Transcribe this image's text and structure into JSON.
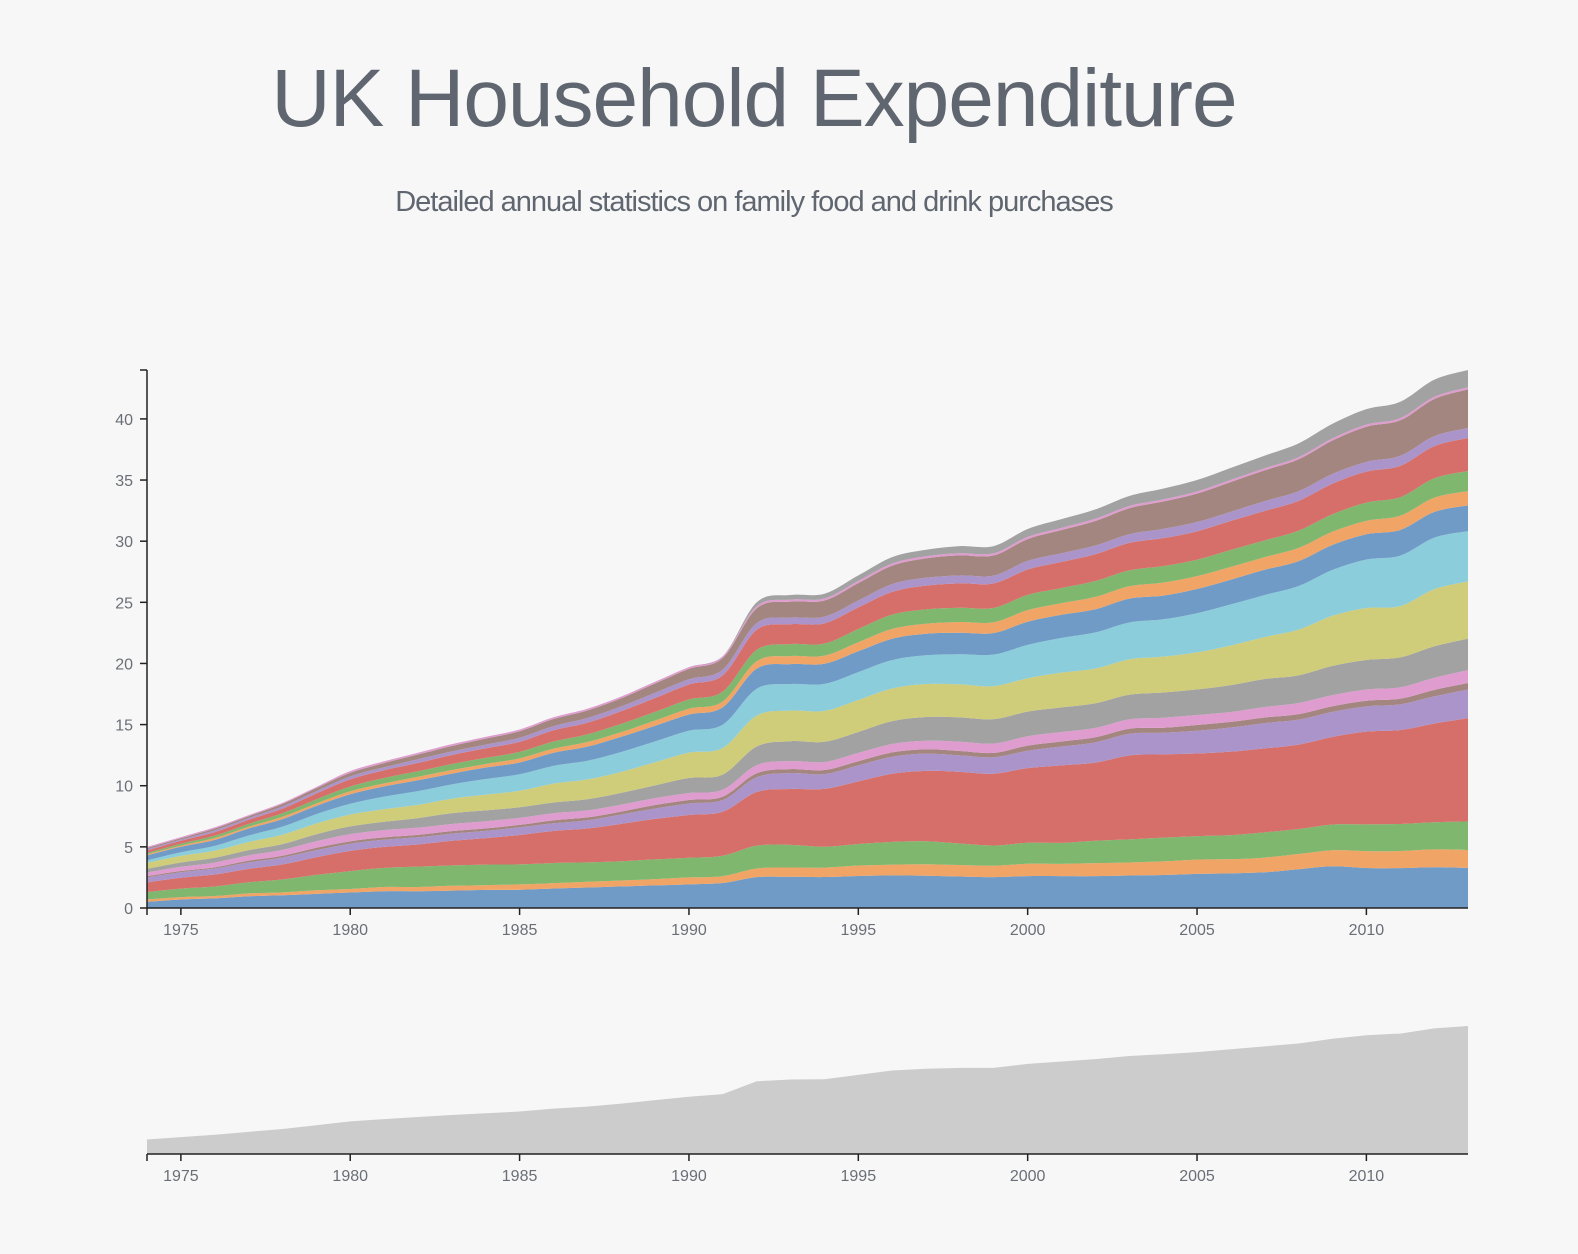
{
  "header": {
    "title": "UK Household Expenditure",
    "subtitle": "Detailed annual statistics on family food and drink purchases"
  },
  "colors": {
    "background": "#f7f7f7",
    "axis": "#222222",
    "tick_text": "#6a6f77",
    "context_area": "#cccccc",
    "palette": [
      "#6f9bc6",
      "#f0a466",
      "#7fb76e",
      "#d66f6a",
      "#ab94c9",
      "#a3867f",
      "#df9ccf",
      "#a2a2a2",
      "#cfcc7a",
      "#8ccddb"
    ]
  },
  "chart_data": {
    "type": "area",
    "stacked": true,
    "smooth": true,
    "title": "UK Household Expenditure",
    "subtitle": "Detailed annual statistics on family food and drink purchases",
    "xlabel": "",
    "ylabel": "",
    "xlim": [
      1974,
      2013
    ],
    "ylim": [
      0,
      44
    ],
    "x_ticks": [
      1975,
      1980,
      1985,
      1990,
      1995,
      2000,
      2005,
      2010
    ],
    "y_ticks": [
      0,
      5,
      10,
      15,
      20,
      25,
      30,
      35,
      40
    ],
    "grid": false,
    "legend": "none",
    "x": [
      1974,
      1975,
      1976,
      1977,
      1978,
      1979,
      1980,
      1981,
      1982,
      1983,
      1984,
      1985,
      1986,
      1987,
      1988,
      1989,
      1990,
      1991,
      1992,
      1993,
      1994,
      1995,
      1996,
      1997,
      1998,
      1999,
      2000,
      2001,
      2002,
      2003,
      2004,
      2005,
      2006,
      2007,
      2008,
      2009,
      2010,
      2011,
      2012,
      2013
    ],
    "total": [
      5.0,
      5.8,
      6.6,
      7.6,
      8.6,
      9.9,
      11.2,
      12.0,
      12.7,
      13.4,
      14.0,
      14.6,
      15.6,
      16.3,
      17.3,
      18.5,
      19.7,
      20.6,
      25.0,
      25.6,
      25.7,
      27.2,
      28.7,
      29.3,
      29.6,
      29.6,
      31.0,
      31.8,
      32.6,
      33.7,
      34.3,
      35.0,
      36.0,
      37.0,
      38.0,
      39.6,
      40.8,
      41.4,
      43.2,
      44.0
    ],
    "series": [
      {
        "values": [
          0.5,
          0.7,
          0.8,
          1.0,
          1.1,
          1.2,
          1.3,
          1.4,
          1.4,
          1.45,
          1.5,
          1.55,
          1.65,
          1.75,
          1.85,
          1.95,
          2.05,
          2.15,
          2.3,
          2.35,
          2.3,
          2.3,
          2.3,
          2.25,
          2.2,
          2.15,
          2.2,
          2.2,
          2.2,
          2.25,
          2.3,
          2.4,
          2.45,
          2.55,
          2.8,
          3.0,
          2.85,
          2.8,
          2.85,
          2.8
        ]
      },
      {
        "values": [
          0.2,
          0.2,
          0.2,
          0.25,
          0.25,
          0.3,
          0.3,
          0.35,
          0.35,
          0.4,
          0.4,
          0.45,
          0.45,
          0.5,
          0.5,
          0.55,
          0.6,
          0.6,
          0.65,
          0.7,
          0.7,
          0.75,
          0.75,
          0.8,
          0.8,
          0.8,
          0.85,
          0.85,
          0.9,
          0.9,
          0.95,
          1.0,
          1.0,
          1.05,
          1.1,
          1.15,
          1.2,
          1.2,
          1.25,
          1.25
        ]
      },
      {
        "values": [
          0.6,
          0.7,
          0.8,
          0.95,
          1.1,
          1.3,
          1.5,
          1.6,
          1.7,
          1.7,
          1.7,
          1.7,
          1.7,
          1.65,
          1.65,
          1.7,
          1.7,
          1.75,
          1.7,
          1.7,
          1.55,
          1.55,
          1.6,
          1.6,
          1.5,
          1.4,
          1.45,
          1.45,
          1.55,
          1.6,
          1.65,
          1.65,
          1.7,
          1.8,
          1.8,
          1.85,
          1.9,
          1.9,
          1.9,
          2.0
        ]
      },
      {
        "values": [
          0.8,
          0.9,
          1.0,
          1.15,
          1.3,
          1.5,
          1.7,
          1.75,
          1.85,
          2.05,
          2.2,
          2.5,
          2.7,
          2.9,
          3.2,
          3.5,
          3.7,
          3.8,
          4.0,
          4.2,
          4.3,
          4.5,
          4.8,
          4.9,
          5.0,
          5.0,
          5.15,
          5.35,
          5.4,
          5.8,
          5.8,
          5.8,
          5.9,
          6.0,
          6.1,
          6.3,
          6.6,
          6.6,
          6.9,
          7.2
        ]
      },
      {
        "values": [
          0.4,
          0.45,
          0.5,
          0.55,
          0.6,
          0.6,
          0.6,
          0.6,
          0.6,
          0.6,
          0.6,
          0.65,
          0.65,
          0.7,
          0.8,
          0.9,
          1.0,
          1.0,
          1.1,
          1.2,
          1.1,
          1.15,
          1.2,
          1.2,
          1.15,
          1.15,
          1.2,
          1.3,
          1.4,
          1.5,
          1.5,
          1.6,
          1.7,
          1.8,
          1.8,
          1.8,
          1.8,
          1.8,
          1.9,
          2.0
        ]
      },
      {
        "values": [
          0.1,
          0.1,
          0.1,
          0.15,
          0.15,
          0.2,
          0.2,
          0.2,
          0.2,
          0.2,
          0.2,
          0.2,
          0.25,
          0.25,
          0.25,
          0.3,
          0.3,
          0.3,
          0.3,
          0.3,
          0.3,
          0.3,
          0.3,
          0.3,
          0.3,
          0.3,
          0.35,
          0.35,
          0.35,
          0.35,
          0.35,
          0.4,
          0.4,
          0.4,
          0.4,
          0.4,
          0.4,
          0.4,
          0.45,
          0.45
        ]
      },
      {
        "values": [
          0.3,
          0.35,
          0.4,
          0.45,
          0.5,
          0.55,
          0.6,
          0.6,
          0.6,
          0.6,
          0.6,
          0.6,
          0.6,
          0.6,
          0.6,
          0.6,
          0.6,
          0.6,
          0.6,
          0.6,
          0.6,
          0.6,
          0.6,
          0.6,
          0.65,
          0.65,
          0.65,
          0.65,
          0.65,
          0.65,
          0.7,
          0.7,
          0.7,
          0.75,
          0.8,
          0.8,
          0.8,
          0.8,
          0.85,
          0.9
        ]
      },
      {
        "values": [
          0.3,
          0.35,
          0.4,
          0.45,
          0.5,
          0.6,
          0.65,
          0.7,
          0.8,
          0.9,
          0.9,
          0.9,
          0.9,
          0.95,
          1.0,
          1.1,
          1.3,
          1.3,
          1.4,
          1.5,
          1.5,
          1.5,
          1.6,
          1.65,
          1.7,
          1.7,
          1.7,
          1.7,
          1.7,
          1.7,
          1.75,
          1.8,
          1.9,
          2.0,
          2.0,
          2.1,
          2.1,
          2.1,
          2.2,
          2.2
        ]
      },
      {
        "values": [
          0.5,
          0.55,
          0.6,
          0.7,
          0.8,
          0.9,
          1.0,
          1.05,
          1.1,
          1.2,
          1.3,
          1.4,
          1.6,
          1.7,
          1.8,
          2.0,
          2.2,
          2.3,
          2.3,
          2.3,
          2.3,
          2.3,
          2.3,
          2.3,
          2.3,
          2.3,
          2.3,
          2.4,
          2.4,
          2.45,
          2.5,
          2.6,
          2.8,
          3.0,
          3.3,
          3.6,
          3.7,
          3.6,
          4.0,
          4.0
        ]
      },
      {
        "values": [
          0.2,
          0.3,
          0.4,
          0.55,
          0.7,
          0.8,
          0.9,
          1.05,
          1.15,
          1.2,
          1.3,
          1.4,
          1.5,
          1.6,
          1.7,
          1.8,
          1.9,
          2.0,
          2.0,
          2.0,
          2.0,
          2.0,
          2.0,
          2.0,
          2.1,
          2.2,
          2.3,
          2.4,
          2.5,
          2.55,
          2.6,
          2.75,
          2.9,
          3.0,
          3.15,
          3.3,
          3.45,
          3.55,
          3.6,
          3.5
        ]
      },
      {
        "values": [
          0.4,
          0.45,
          0.5,
          0.6,
          0.65,
          0.7,
          0.8,
          0.85,
          0.9,
          0.9,
          0.95,
          1.0,
          1.1,
          1.2,
          1.3,
          1.35,
          1.4,
          1.5,
          1.5,
          1.5,
          1.5,
          1.5,
          1.5,
          1.5,
          1.5,
          1.5,
          1.6,
          1.6,
          1.6,
          1.65,
          1.65,
          1.7,
          1.75,
          1.8,
          1.8,
          1.8,
          1.8,
          1.8,
          1.8,
          1.8
        ]
      },
      {
        "values": [
          0.1,
          0.1,
          0.15,
          0.15,
          0.2,
          0.2,
          0.25,
          0.25,
          0.3,
          0.3,
          0.3,
          0.35,
          0.35,
          0.4,
          0.4,
          0.45,
          0.5,
          0.5,
          0.55,
          0.6,
          0.6,
          0.65,
          0.7,
          0.7,
          0.75,
          0.75,
          0.8,
          0.8,
          0.85,
          0.85,
          0.9,
          0.9,
          0.9,
          0.9,
          0.95,
          0.95,
          0.95,
          1.0,
          1.0,
          1.0
        ]
      },
      {
        "values": [
          0.1,
          0.15,
          0.2,
          0.25,
          0.3,
          0.35,
          0.4,
          0.45,
          0.45,
          0.5,
          0.5,
          0.55,
          0.6,
          0.65,
          0.7,
          0.75,
          0.8,
          0.85,
          0.85,
          0.9,
          0.9,
          0.95,
          1.0,
          1.0,
          1.0,
          1.0,
          1.05,
          1.05,
          1.1,
          1.1,
          1.15,
          1.15,
          1.2,
          1.2,
          1.25,
          1.25,
          1.3,
          1.3,
          1.35,
          1.4
        ]
      },
      {
        "values": [
          0.2,
          0.25,
          0.3,
          0.35,
          0.4,
          0.5,
          0.6,
          0.65,
          0.7,
          0.75,
          0.8,
          0.85,
          0.95,
          1.0,
          1.1,
          1.2,
          1.3,
          1.4,
          1.5,
          1.5,
          1.5,
          1.55,
          1.6,
          1.65,
          1.7,
          1.7,
          1.75,
          1.8,
          1.85,
          1.9,
          1.95,
          2.0,
          2.05,
          2.1,
          2.15,
          2.2,
          2.2,
          2.2,
          2.25,
          2.3
        ]
      },
      {
        "values": [
          0.1,
          0.1,
          0.15,
          0.15,
          0.2,
          0.2,
          0.25,
          0.25,
          0.3,
          0.3,
          0.3,
          0.35,
          0.35,
          0.4,
          0.4,
          0.45,
          0.45,
          0.5,
          0.5,
          0.5,
          0.5,
          0.5,
          0.55,
          0.55,
          0.55,
          0.55,
          0.6,
          0.6,
          0.6,
          0.6,
          0.65,
          0.65,
          0.65,
          0.7,
          0.7,
          0.7,
          0.7,
          0.7,
          0.7,
          0.7
        ]
      },
      {
        "values": [
          0.1,
          0.1,
          0.15,
          0.15,
          0.2,
          0.25,
          0.3,
          0.35,
          0.4,
          0.45,
          0.5,
          0.55,
          0.6,
          0.65,
          0.7,
          0.8,
          0.9,
          1.0,
          1.1,
          1.2,
          1.2,
          1.25,
          1.3,
          1.35,
          1.4,
          1.4,
          1.5,
          1.6,
          1.7,
          1.8,
          1.9,
          2.0,
          2.1,
          2.2,
          2.3,
          2.4,
          2.5,
          2.5,
          2.6,
          2.7
        ]
      },
      {
        "values": [
          0.1,
          0.1,
          0.1,
          0.1,
          0.1,
          0.1,
          0.15,
          0.15,
          0.15,
          0.15,
          0.15,
          0.15,
          0.15,
          0.15,
          0.15,
          0.15,
          0.15,
          0.15,
          0.15,
          0.15,
          0.15,
          0.15,
          0.15,
          0.15,
          0.15,
          0.15,
          0.15,
          0.15,
          0.15,
          0.15,
          0.15,
          0.15,
          0.15,
          0.15,
          0.15,
          0.15,
          0.15,
          0.15,
          0.15,
          0.15
        ]
      },
      {
        "values": [
          0.0,
          0.0,
          0.0,
          0.0,
          0.0,
          0.0,
          0.0,
          0.0,
          0.0,
          0.0,
          0.0,
          0.0,
          0.0,
          0.0,
          0.0,
          0.0,
          0.0,
          0.0,
          0.3,
          0.35,
          0.35,
          0.4,
          0.45,
          0.45,
          0.5,
          0.5,
          0.55,
          0.6,
          0.65,
          0.7,
          0.75,
          0.8,
          0.85,
          0.9,
          1.0,
          1.05,
          1.1,
          1.15,
          1.2,
          1.2
        ]
      }
    ]
  },
  "context_chart": {
    "type": "area",
    "xlim": [
      1974,
      2013
    ],
    "x_ticks": [
      1975,
      1980,
      1985,
      1990,
      1995,
      2000,
      2005,
      2010
    ]
  }
}
